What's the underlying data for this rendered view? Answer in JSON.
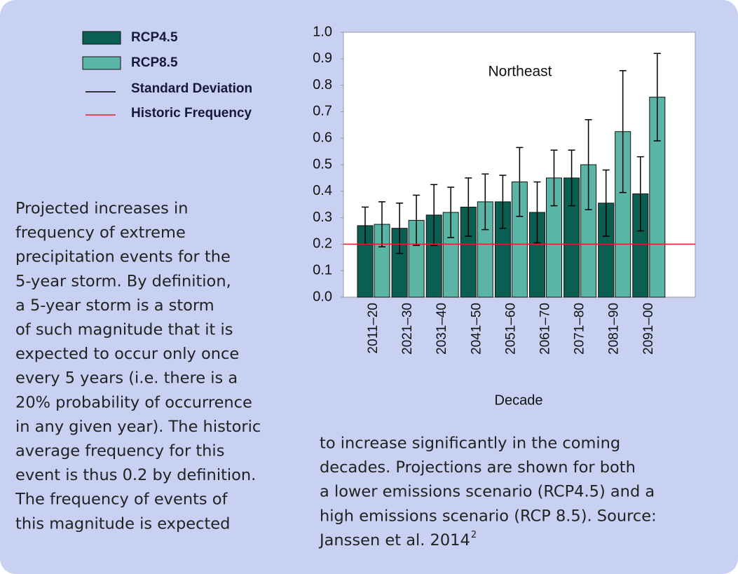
{
  "chart_data": {
    "type": "bar",
    "annotation": "Northeast",
    "xlabel": "Decade",
    "categories": [
      "2011–20",
      "2021–30",
      "2031–40",
      "2041–50",
      "2051–60",
      "2061–70",
      "2071–80",
      "2081–90",
      "2091–00"
    ],
    "series": [
      {
        "name": "RCP4.5",
        "color": "#0b5e52",
        "values": [
          0.27,
          0.26,
          0.31,
          0.34,
          0.36,
          0.32,
          0.45,
          0.355,
          0.39
        ],
        "errors": [
          0.07,
          0.095,
          0.115,
          0.11,
          0.1,
          0.115,
          0.105,
          0.125,
          0.14
        ]
      },
      {
        "name": "RCP8.5",
        "color": "#5bb5a6",
        "values": [
          0.275,
          0.29,
          0.32,
          0.36,
          0.435,
          0.45,
          0.5,
          0.625,
          0.755
        ],
        "errors": [
          0.085,
          0.095,
          0.095,
          0.105,
          0.13,
          0.105,
          0.17,
          0.23,
          0.165
        ]
      }
    ],
    "error_bar_name": "Standard Deviation",
    "error_bar_color": "#000000",
    "reference_line": {
      "name": "Historic Frequency",
      "value": 0.2,
      "color": "#e02020"
    },
    "ylim": [
      0,
      1
    ],
    "yticks": [
      {
        "value": 0,
        "label": "0.0"
      },
      0.1,
      0.2,
      0.3,
      0.4,
      0.5,
      0.6,
      0.7,
      0.8,
      0.9,
      {
        "value": 1,
        "label": "1.0"
      }
    ],
    "grid": false
  },
  "caption": {
    "left_lines": [
      "Projected increases in",
      "frequency of extreme",
      "precipitation events for the",
      "5-year storm.  By definition,",
      "a 5-year storm is a storm",
      "of such magnitude that it is",
      "expected to occur only once",
      "every 5 years (i.e. there is a",
      "20% probability of occurrence",
      "in any given year).  The historic",
      "average frequency for this",
      "event is thus 0.2 by definition.",
      "The frequency of events of",
      "this magnitude is expected"
    ],
    "right_lines": [
      "to increase significantly in the coming",
      "decades.  Projections are shown for both",
      "a lower emissions scenario (RCP4.5) and a",
      "high emissions scenario (RCP 8.5). Source:",
      "Janssen et al. 2014"
    ],
    "reference_mark": "2"
  }
}
